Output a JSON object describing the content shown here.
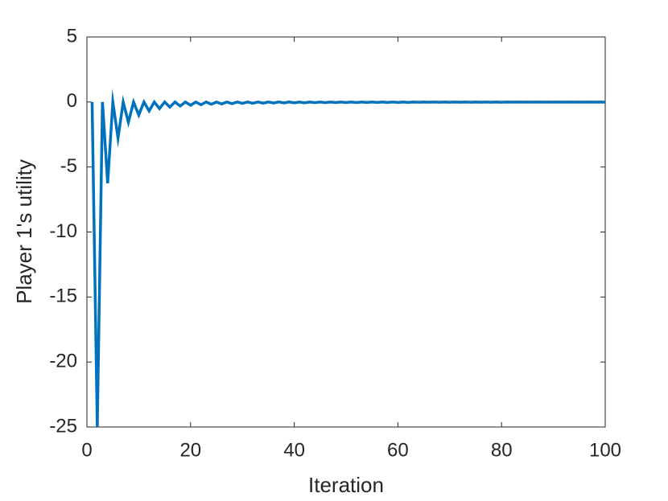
{
  "chart_data": {
    "type": "line",
    "xlabel": "Iteration",
    "ylabel": "Player 1's utility",
    "x": [
      1,
      2,
      3,
      4,
      5,
      6,
      7,
      8,
      9,
      10,
      11,
      12,
      13,
      14,
      15,
      16,
      17,
      18,
      19,
      20,
      21,
      22,
      23,
      24,
      25,
      26,
      27,
      28,
      29,
      30,
      31,
      32,
      33,
      34,
      35,
      36,
      37,
      38,
      39,
      40,
      41,
      42,
      43,
      44,
      45,
      46,
      47,
      48,
      49,
      50,
      51,
      52,
      53,
      54,
      55,
      56,
      57,
      58,
      59,
      60,
      61,
      62,
      63,
      64,
      65,
      66,
      67,
      68,
      69,
      70,
      71,
      72,
      73,
      74,
      75,
      76,
      77,
      78,
      79,
      80,
      81,
      82,
      83,
      84,
      85,
      86,
      87,
      88,
      89,
      90,
      91,
      92,
      93,
      94,
      95,
      96,
      97,
      98,
      99,
      100
    ],
    "values": [
      0,
      -25,
      0,
      -6.25,
      0,
      -2.78,
      0,
      -1.56,
      0,
      -1,
      0,
      -0.69,
      0,
      -0.51,
      0,
      -0.39,
      0,
      -0.31,
      0,
      -0.25,
      0,
      -0.21,
      0,
      -0.17,
      0,
      -0.15,
      0,
      -0.13,
      0,
      -0.11,
      0,
      -0.1,
      0,
      -0.09,
      0,
      -0.08,
      0,
      -0.07,
      0,
      -0.06,
      0,
      -0.06,
      0,
      -0.05,
      0,
      -0.05,
      0,
      -0.04,
      0,
      -0.04,
      0,
      -0.04,
      0,
      -0.03,
      0,
      -0.03,
      0,
      -0.03,
      0,
      -0.03,
      0,
      -0.03,
      0,
      -0.02,
      0,
      -0.02,
      0,
      -0.02,
      0,
      -0.02,
      0,
      -0.02,
      0,
      -0.02,
      0,
      -0.02,
      0,
      -0.02,
      0,
      -0.02,
      0,
      -0.01,
      0,
      -0.01,
      0,
      -0.01,
      0,
      -0.01,
      0,
      -0.01,
      0,
      -0.01,
      0,
      -0.01,
      0,
      -0.01,
      0,
      -0.01,
      0,
      -0.01
    ],
    "color": "#0072bd",
    "xlim": [
      0,
      100
    ],
    "xticks": [
      0,
      20,
      40,
      60,
      80,
      100
    ],
    "ylim": [
      -25,
      5
    ],
    "yticks": [
      -25,
      -20,
      -15,
      -10,
      -5,
      0,
      5
    ],
    "grid": false
  }
}
